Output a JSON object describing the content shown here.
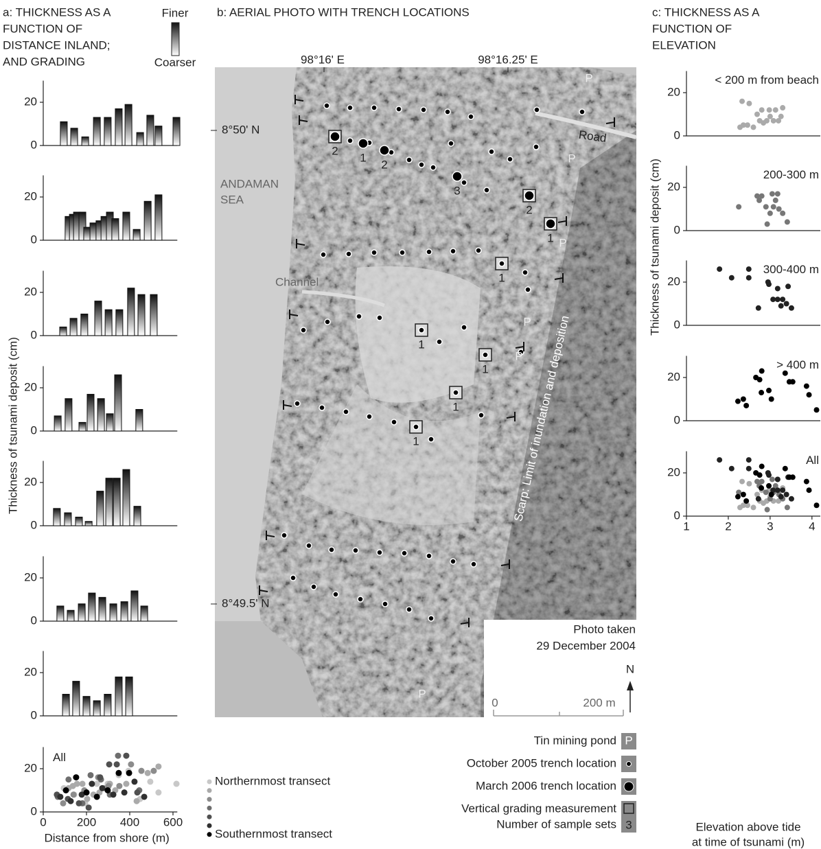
{
  "panel_a": {
    "title": [
      "a: THICKNESS AS A",
      "FUNCTION OF",
      "DISTANCE INLAND;",
      "AND GRADING"
    ],
    "finer": "Finer",
    "coarser": "Coarser",
    "ylabel": "Thickness of tsunami deposit (cm)"
  },
  "panel_b": {
    "title": "b: AERIAL PHOTO WITH TRENCH LOCATIONS",
    "lon_labels": [
      "98°16' E",
      "98°16.25' E"
    ],
    "lat_labels": [
      "8°50' N",
      "8°49.5' N"
    ],
    "sea": [
      "ANDAMAN",
      "SEA"
    ],
    "channel": "Channel",
    "road": "Road",
    "scarp": "Scarp: Limit of inundation and deposition",
    "pond_label": "P",
    "photo_note": [
      "Photo taken",
      "29 December 2004"
    ],
    "north": "N",
    "scale": [
      "0",
      "200 m"
    ],
    "trench_counts": [
      "2",
      "1",
      "2",
      "3",
      "2",
      "1",
      "1",
      "1",
      "1",
      "1",
      "1"
    ],
    "legend": {
      "pond": "Tin mining pond",
      "oct": "October 2005 trench location",
      "mar": "March 2006 trench location",
      "grading": "Vertical grading measurement",
      "sets": "Number of sample sets",
      "sets_example": "3"
    }
  },
  "panel_c": {
    "title": [
      "c: THICKNESS AS A",
      "FUNCTION OF",
      "ELEVATION"
    ],
    "ylabel": "Thickness of tsunami deposit (cm)",
    "xlabel": [
      "Elevation above tide",
      "at time of tsunami (m)"
    ]
  },
  "chart_data": [
    {
      "type": "bar",
      "color": "#c8c8c8",
      "xlim": [
        0,
        620
      ],
      "ylim": [
        0,
        30
      ],
      "yticks": [
        0,
        20
      ],
      "x": [
        95,
        143,
        194,
        248,
        298,
        349,
        394,
        448,
        495,
        533,
        616
      ],
      "values": [
        11,
        8,
        4,
        13,
        13,
        17,
        19,
        6,
        14,
        9,
        13
      ]
    },
    {
      "type": "bar",
      "color": "#aaaaaa",
      "xlim": [
        0,
        620
      ],
      "ylim": [
        0,
        30
      ],
      "yticks": [
        0,
        20
      ],
      "x": [
        117,
        137,
        156,
        181,
        203,
        232,
        260,
        283,
        308,
        333,
        384,
        432,
        483,
        533
      ],
      "values": [
        11,
        12,
        13,
        13,
        6,
        8,
        9,
        11,
        13,
        10,
        13,
        5,
        18,
        21
      ]
    },
    {
      "type": "bar",
      "color": "#8c8c8c",
      "xlim": [
        0,
        620
      ],
      "ylim": [
        0,
        30
      ],
      "yticks": [
        0,
        20
      ],
      "x": [
        92,
        140,
        190,
        254,
        302,
        352,
        406,
        454,
        511
      ],
      "values": [
        4,
        8,
        10,
        16,
        12,
        12,
        22,
        19,
        19
      ]
    },
    {
      "type": "bar",
      "color": "#6e6e6e",
      "xlim": [
        0,
        620
      ],
      "ylim": [
        0,
        30
      ],
      "yticks": [
        0,
        20
      ],
      "x": [
        67,
        117,
        181,
        219,
        267,
        308,
        346,
        444
      ],
      "values": [
        7,
        15,
        4,
        17,
        15,
        8,
        26,
        10
      ]
    },
    {
      "type": "bar",
      "color": "#505050",
      "xlim": [
        0,
        620
      ],
      "ylim": [
        0,
        30
      ],
      "yticks": [
        0,
        20
      ],
      "x": [
        63,
        114,
        165,
        210,
        263,
        305,
        340,
        384,
        435
      ],
      "values": [
        8,
        6,
        4,
        2,
        16,
        22,
        22,
        26,
        9
      ]
    },
    {
      "type": "bar",
      "color": "#303030",
      "xlim": [
        0,
        620
      ],
      "ylim": [
        0,
        30
      ],
      "yticks": [
        0,
        20
      ],
      "x": [
        79,
        127,
        178,
        225,
        273,
        324,
        375,
        422,
        467
      ],
      "values": [
        7,
        5,
        8,
        13,
        11,
        8,
        9,
        14,
        7
      ]
    },
    {
      "type": "bar",
      "color": "#000000",
      "xlim": [
        0,
        620
      ],
      "ylim": [
        0,
        30
      ],
      "yticks": [
        0,
        20
      ],
      "x": [
        105,
        152,
        200,
        248,
        298,
        349,
        397
      ],
      "values": [
        10,
        16,
        9,
        7,
        10,
        18,
        18
      ]
    },
    {
      "type": "scatter",
      "label": "All",
      "xlabel": "Distance from shore (m)",
      "xlim": [
        0,
        620
      ],
      "ylim": [
        0,
        30
      ],
      "xticks": [
        0,
        200,
        400,
        600
      ],
      "yticks": [
        0,
        20
      ],
      "legend": [
        "Northernmost transect",
        null,
        null,
        null,
        null,
        null,
        "Southernmost transect"
      ]
    },
    {
      "type": "scatter",
      "label": "< 200 m from beach",
      "color": "#aaaaaa",
      "xlim": [
        1,
        4.2
      ],
      "ylim": [
        0,
        30
      ],
      "yticks": [
        0,
        20
      ],
      "x": [
        2.33,
        2.5,
        2.36,
        2.28,
        2.46,
        2.6,
        2.69,
        2.8,
        2.75,
        2.92,
        3.0,
        3.08,
        3.2,
        3.3,
        3.13,
        2.98,
        3.26,
        2.84
      ],
      "values": [
        16,
        15,
        5,
        4,
        5,
        4,
        10,
        12,
        7,
        7,
        9,
        7,
        7,
        13,
        12,
        12,
        9,
        6
      ]
    },
    {
      "type": "scatter",
      "label": "200-300 m",
      "color": "#777777",
      "xlim": [
        1,
        4.2
      ],
      "ylim": [
        0,
        30
      ],
      "yticks": [
        0,
        20
      ],
      "x": [
        2.25,
        2.69,
        2.8,
        2.74,
        2.9,
        3.05,
        3.18,
        3.13,
        3.08,
        3.21,
        3.0,
        2.93,
        3.3,
        3.41
      ],
      "values": [
        11,
        16,
        16,
        14,
        11,
        17,
        17,
        14,
        11,
        10,
        8,
        3,
        8,
        4
      ]
    },
    {
      "type": "scatter",
      "label": "300-400 m",
      "color": "#222222",
      "xlim": [
        1,
        4.2
      ],
      "ylim": [
        0,
        30
      ],
      "yticks": [
        0,
        20
      ],
      "x": [
        1.79,
        2.08,
        2.49,
        2.49,
        2.72,
        2.95,
        2.97,
        3.18,
        3.43,
        3.07,
        3.18,
        3.3,
        3.39,
        3.51,
        3.26
      ],
      "values": [
        26,
        22,
        26,
        22,
        8,
        20,
        19,
        17,
        18,
        12,
        12,
        12,
        10,
        8,
        9
      ]
    },
    {
      "type": "scatter",
      "label": "> 400 m",
      "color": "#000000",
      "xlim": [
        1,
        4.2
      ],
      "ylim": [
        0,
        30
      ],
      "yticks": [
        0,
        20
      ],
      "x": [
        2.23,
        2.36,
        2.43,
        2.66,
        2.75,
        2.8,
        2.79,
        2.97,
        3.03,
        3.36,
        3.46,
        3.54,
        3.87,
        3.93,
        4.11
      ],
      "values": [
        9,
        10,
        7,
        20,
        19,
        23,
        13,
        14,
        10,
        22,
        18,
        18,
        16,
        12,
        5
      ]
    },
    {
      "type": "scatter",
      "label": "All",
      "xlim": [
        1,
        4.2
      ],
      "ylim": [
        0,
        30
      ],
      "xticks": [
        1,
        2,
        3,
        4
      ],
      "yticks": [
        0,
        20
      ]
    }
  ]
}
